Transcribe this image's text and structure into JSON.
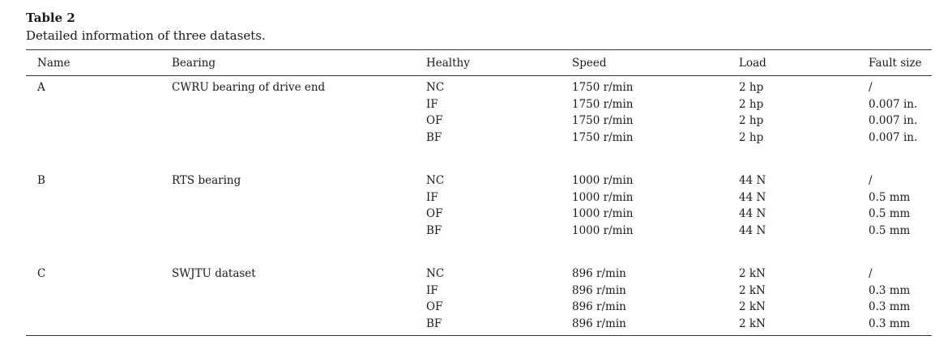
{
  "caption": {
    "title": "Table 2",
    "subtitle": "Detailed information of three datasets."
  },
  "headers": {
    "name": "Name",
    "bearing": "Bearing",
    "healthy": "Healthy",
    "speed": "Speed",
    "load": "Load",
    "fault": "Fault size"
  },
  "groups": [
    {
      "name": "A",
      "bearing": "CWRU bearing of drive end",
      "rows": [
        {
          "healthy": "NC",
          "speed": "1750 r/min",
          "load": "2 hp",
          "fault": "/"
        },
        {
          "healthy": "IF",
          "speed": "1750 r/min",
          "load": "2 hp",
          "fault": "0.007 in."
        },
        {
          "healthy": "OF",
          "speed": "1750 r/min",
          "load": "2 hp",
          "fault": "0.007 in."
        },
        {
          "healthy": "BF",
          "speed": "1750 r/min",
          "load": "2 hp",
          "fault": "0.007 in."
        }
      ]
    },
    {
      "name": "B",
      "bearing": "RTS bearing",
      "rows": [
        {
          "healthy": "NC",
          "speed": "1000 r/min",
          "load": "44 N",
          "fault": "/"
        },
        {
          "healthy": "IF",
          "speed": "1000 r/min",
          "load": "44 N",
          "fault": "0.5 mm"
        },
        {
          "healthy": "OF",
          "speed": "1000 r/min",
          "load": "44 N",
          "fault": "0.5 mm"
        },
        {
          "healthy": "BF",
          "speed": "1000 r/min",
          "load": "44 N",
          "fault": "0.5 mm"
        }
      ]
    },
    {
      "name": "C",
      "bearing": "SWJTU dataset",
      "rows": [
        {
          "healthy": "NC",
          "speed": "896 r/min",
          "load": "2 kN",
          "fault": "/"
        },
        {
          "healthy": "IF",
          "speed": "896 r/min",
          "load": "2 kN",
          "fault": "0.3 mm"
        },
        {
          "healthy": "OF",
          "speed": "896 r/min",
          "load": "2 kN",
          "fault": "0.3 mm"
        },
        {
          "healthy": "BF",
          "speed": "896 r/min",
          "load": "2 kN",
          "fault": "0.3 mm"
        }
      ]
    }
  ]
}
